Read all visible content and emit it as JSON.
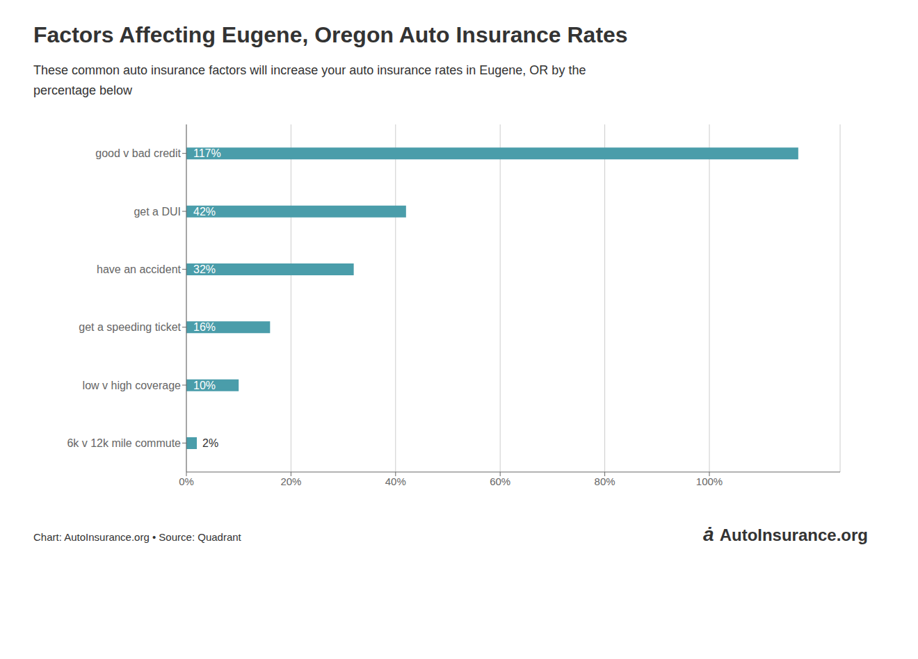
{
  "chart_data": {
    "type": "bar",
    "orientation": "horizontal",
    "title": "Factors Affecting Eugene, Oregon Auto Insurance Rates",
    "subtitle": "These common auto insurance factors will increase your auto insurance rates in Eugene, OR by the\npercentage below",
    "categories": [
      "good v bad credit",
      "get a DUI",
      "have an accident",
      "get a speeding ticket",
      "low v high coverage",
      "6k v 12k mile commute"
    ],
    "values": [
      117,
      42,
      32,
      16,
      10,
      2
    ],
    "value_labels": [
      "117%",
      "42%",
      "32%",
      "16%",
      "10%",
      "2%"
    ],
    "data_labels": true,
    "color": "#4a9daa",
    "xlim": [
      0,
      125
    ],
    "xticks": [
      {
        "value": 0,
        "label": "0%"
      },
      {
        "value": 20,
        "label": "20%"
      },
      {
        "value": 40,
        "label": "40%"
      },
      {
        "value": 60,
        "label": "60%"
      },
      {
        "value": 80,
        "label": "80%"
      },
      {
        "value": 100,
        "label": "100%"
      }
    ],
    "grid": true,
    "annotations": [
      "Chart: AutoInsurance.org • Source: Quadrant",
      "ȧ",
      "AutoInsurance.org"
    ]
  }
}
